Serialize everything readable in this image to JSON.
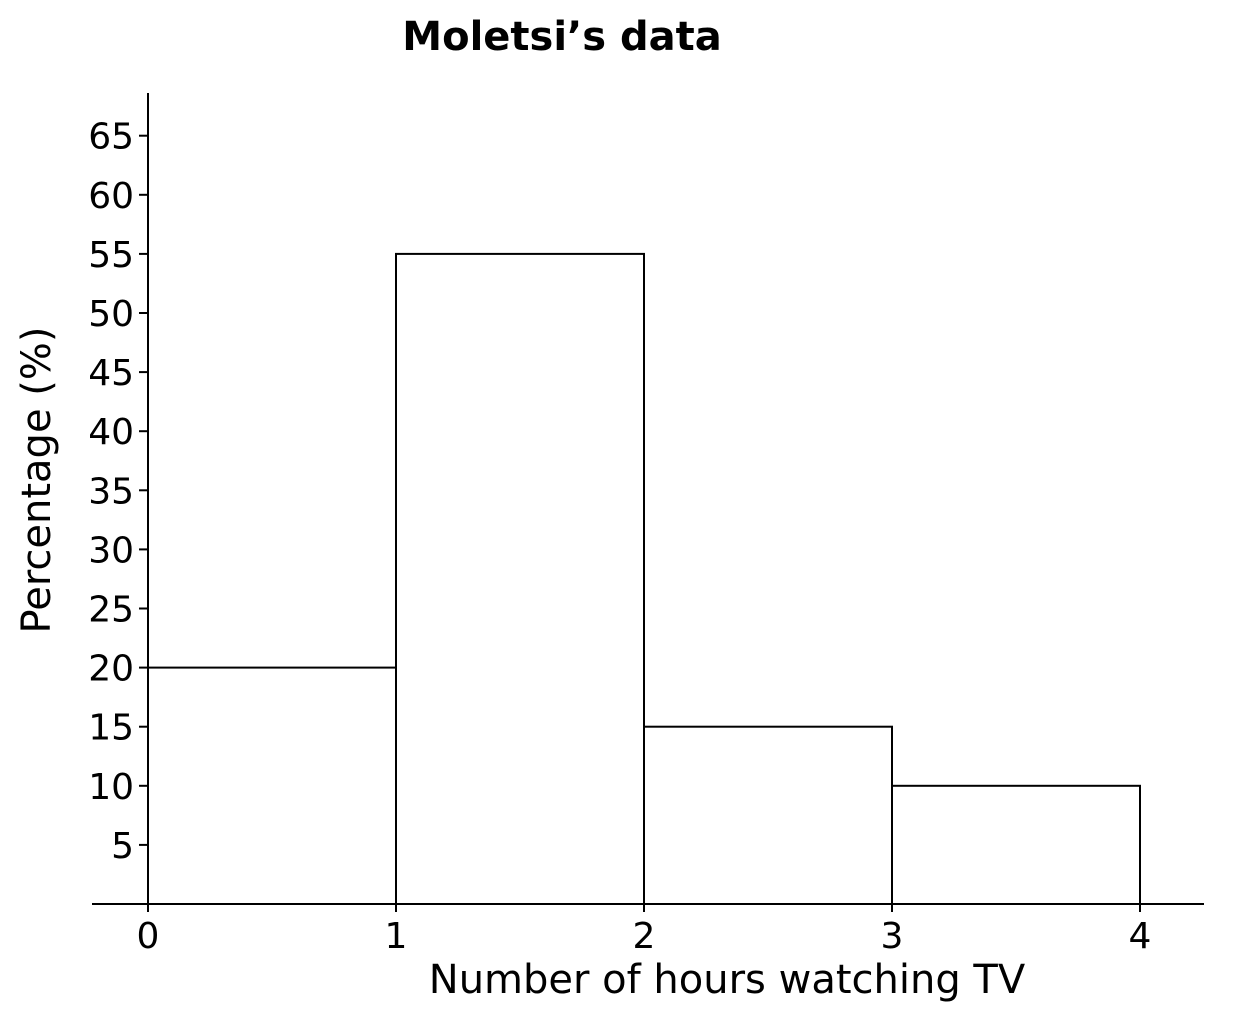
{
  "chart_data": {
    "type": "bar",
    "title": "Moletsi’s data",
    "xlabel": "Number of hours watching TV",
    "ylabel": "Percentage (%)",
    "bins": [
      {
        "start": 0,
        "end": 1,
        "value": 20
      },
      {
        "start": 1,
        "end": 2,
        "value": 55
      },
      {
        "start": 2,
        "end": 3,
        "value": 15
      },
      {
        "start": 3,
        "end": 4,
        "value": 10
      }
    ],
    "x_ticks": [
      "0",
      "1",
      "2",
      "3",
      "4"
    ],
    "y_ticks": [
      "5",
      "10",
      "15",
      "20",
      "25",
      "30",
      "35",
      "40",
      "45",
      "50",
      "55",
      "60",
      "65"
    ],
    "xlim": [
      0,
      4
    ],
    "ylim": [
      0,
      65
    ],
    "grid": false,
    "legend": "none"
  }
}
